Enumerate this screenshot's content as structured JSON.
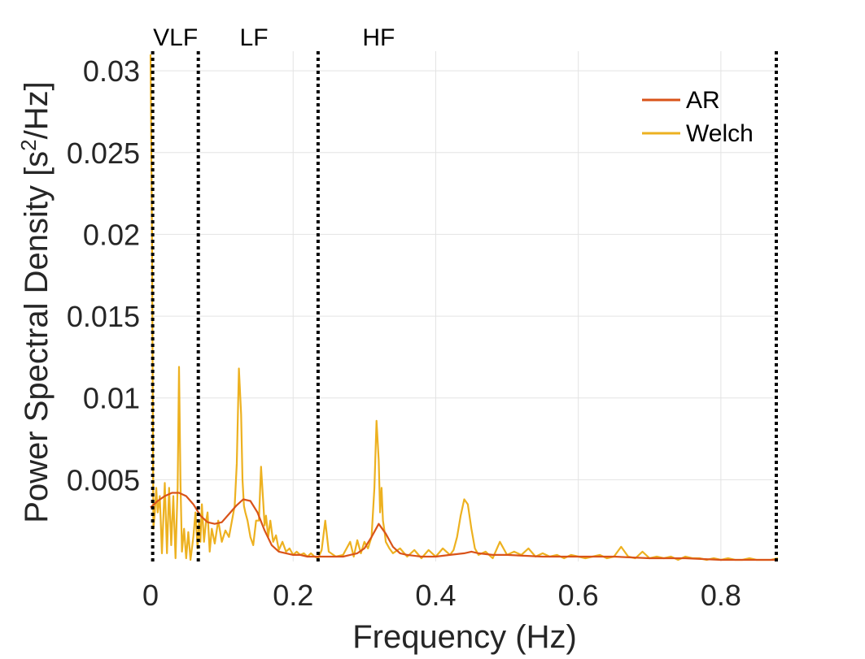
{
  "chart_data": {
    "type": "line",
    "title": "",
    "xlabel": "Frequency (Hz)",
    "ylabel_main": "Power Spectral Density [s",
    "ylabel_sup": "2",
    "ylabel_end": "/Hz]",
    "xlim": [
      0,
      0.88
    ],
    "ylim": [
      0,
      0.0312
    ],
    "grid": true,
    "legend_position": "top-right",
    "x_ticks": [
      {
        "value": 0,
        "label": "0"
      },
      {
        "value": 0.2,
        "label": "0.2"
      },
      {
        "value": 0.4,
        "label": "0.4"
      },
      {
        "value": 0.6,
        "label": "0.6"
      },
      {
        "value": 0.8,
        "label": "0.8"
      }
    ],
    "y_ticks": [
      {
        "value": 0.005,
        "label": "0.005"
      },
      {
        "value": 0.01,
        "label": "0.01"
      },
      {
        "value": 0.015,
        "label": "0.015"
      },
      {
        "value": 0.02,
        "label": "0.02"
      },
      {
        "value": 0.025,
        "label": "0.025"
      },
      {
        "value": 0.03,
        "label": "0.03"
      }
    ],
    "bands": [
      {
        "label": "VLF",
        "label_x": 0.035
      },
      {
        "label": "LF",
        "label_x": 0.145
      },
      {
        "label": "HF",
        "label_x": 0.32
      }
    ],
    "band_boundaries": [
      0.003,
      0.067,
      0.235,
      0.88
    ],
    "series": [
      {
        "name": "AR",
        "color": "#d95319",
        "x": [
          0,
          0.01,
          0.02,
          0.03,
          0.04,
          0.05,
          0.06,
          0.07,
          0.08,
          0.09,
          0.1,
          0.11,
          0.12,
          0.13,
          0.14,
          0.15,
          0.16,
          0.17,
          0.18,
          0.19,
          0.2,
          0.21,
          0.22,
          0.23,
          0.24,
          0.25,
          0.26,
          0.27,
          0.28,
          0.29,
          0.3,
          0.31,
          0.32,
          0.33,
          0.34,
          0.35,
          0.36,
          0.38,
          0.4,
          0.42,
          0.44,
          0.45,
          0.46,
          0.48,
          0.5,
          0.55,
          0.6,
          0.65,
          0.7,
          0.75,
          0.8,
          0.85,
          0.88
        ],
        "y": [
          0.0033,
          0.0037,
          0.004,
          0.0042,
          0.0042,
          0.004,
          0.0035,
          0.0028,
          0.0024,
          0.0023,
          0.0024,
          0.0029,
          0.0034,
          0.0038,
          0.0037,
          0.003,
          0.0019,
          0.001,
          0.0006,
          0.0005,
          0.0004,
          0.0004,
          0.0003,
          0.0003,
          0.0003,
          0.0003,
          0.0003,
          0.0003,
          0.0004,
          0.0005,
          0.0008,
          0.0015,
          0.0023,
          0.0017,
          0.0009,
          0.0005,
          0.0004,
          0.0003,
          0.0003,
          0.0004,
          0.0005,
          0.0006,
          0.0005,
          0.0004,
          0.0004,
          0.0003,
          0.0003,
          0.0003,
          0.0002,
          0.0002,
          0.0001,
          0.0001,
          0.0001
        ]
      },
      {
        "name": "Welch",
        "color": "#edb120",
        "x": [
          0,
          0.002,
          0.004,
          0.006,
          0.008,
          0.01,
          0.013,
          0.016,
          0.02,
          0.023,
          0.026,
          0.029,
          0.032,
          0.035,
          0.038,
          0.04,
          0.042,
          0.044,
          0.047,
          0.05,
          0.053,
          0.056,
          0.06,
          0.063,
          0.066,
          0.068,
          0.07,
          0.072,
          0.075,
          0.078,
          0.08,
          0.083,
          0.086,
          0.09,
          0.095,
          0.1,
          0.105,
          0.11,
          0.115,
          0.118,
          0.121,
          0.124,
          0.127,
          0.129,
          0.131,
          0.133,
          0.136,
          0.14,
          0.144,
          0.148,
          0.152,
          0.155,
          0.158,
          0.16,
          0.162,
          0.165,
          0.168,
          0.172,
          0.176,
          0.18,
          0.185,
          0.19,
          0.195,
          0.2,
          0.205,
          0.21,
          0.215,
          0.22,
          0.225,
          0.23,
          0.235,
          0.24,
          0.245,
          0.25,
          0.26,
          0.27,
          0.28,
          0.285,
          0.29,
          0.295,
          0.3,
          0.305,
          0.31,
          0.314,
          0.317,
          0.32,
          0.322,
          0.324,
          0.326,
          0.328,
          0.33,
          0.335,
          0.34,
          0.35,
          0.36,
          0.37,
          0.38,
          0.39,
          0.4,
          0.41,
          0.42,
          0.425,
          0.43,
          0.435,
          0.44,
          0.445,
          0.45,
          0.455,
          0.46,
          0.47,
          0.48,
          0.49,
          0.5,
          0.51,
          0.52,
          0.53,
          0.54,
          0.55,
          0.56,
          0.57,
          0.58,
          0.59,
          0.6,
          0.61,
          0.62,
          0.63,
          0.64,
          0.65,
          0.66,
          0.67,
          0.68,
          0.69,
          0.7,
          0.71,
          0.72,
          0.73,
          0.74,
          0.75,
          0.76,
          0.77,
          0.78,
          0.79,
          0.8,
          0.81,
          0.82,
          0.83,
          0.84,
          0.85,
          0.86,
          0.87,
          0.88
        ],
        "y": [
          0.031,
          0.02,
          0.002,
          0.003,
          0.0045,
          0.003,
          0.004,
          0.0005,
          0.0048,
          0.0005,
          0.0045,
          0.001,
          0.004,
          0.0002,
          0.0045,
          0.0119,
          0.0048,
          0.0006,
          0.002,
          0.0002,
          0.0018,
          0.0001,
          0.0015,
          0.003,
          0.0008,
          0.0025,
          0.0012,
          0.0035,
          0.0012,
          0.0025,
          0.003,
          0.0006,
          0.002,
          0.0011,
          0.0025,
          0.0012,
          0.0019,
          0.0015,
          0.0027,
          0.0034,
          0.006,
          0.0118,
          0.009,
          0.005,
          0.0034,
          0.003,
          0.0025,
          0.0015,
          0.001,
          0.0025,
          0.0025,
          0.0058,
          0.0037,
          0.0022,
          0.0028,
          0.0015,
          0.0025,
          0.0012,
          0.0016,
          0.0007,
          0.0012,
          0.0006,
          0.0008,
          0.0004,
          0.0006,
          0.0004,
          0.0005,
          0.0003,
          0.0005,
          0.0003,
          0.0002,
          0.0007,
          0.0025,
          0.0006,
          0.0003,
          0.0004,
          0.0012,
          0.0003,
          0.0013,
          0.0005,
          0.0012,
          0.0008,
          0.0015,
          0.0045,
          0.0086,
          0.0062,
          0.003,
          0.0045,
          0.0025,
          0.0019,
          0.0012,
          0.0008,
          0.0005,
          0.0008,
          0.0003,
          0.0007,
          0.0002,
          0.0007,
          0.0003,
          0.0008,
          0.0004,
          0.0007,
          0.0015,
          0.0028,
          0.0038,
          0.0035,
          0.002,
          0.0008,
          0.0004,
          0.0006,
          0.0002,
          0.0012,
          0.0004,
          0.0006,
          0.0004,
          0.0008,
          0.0003,
          0.0005,
          0.0003,
          0.0004,
          0.0002,
          0.0004,
          0.0003,
          0.0002,
          0.0003,
          0.0004,
          0.0002,
          0.0003,
          0.0009,
          0.0003,
          0.0002,
          0.0006,
          0.0002,
          0.0003,
          0.0002,
          0.0003,
          0.0001,
          0.0003,
          0.0002,
          0.0002,
          0.0001,
          0.0002,
          0.0001,
          0.0002,
          0.0001,
          0.0001,
          0.0002,
          0.0001,
          0.0001,
          0.0001,
          0.0002
        ]
      }
    ]
  }
}
